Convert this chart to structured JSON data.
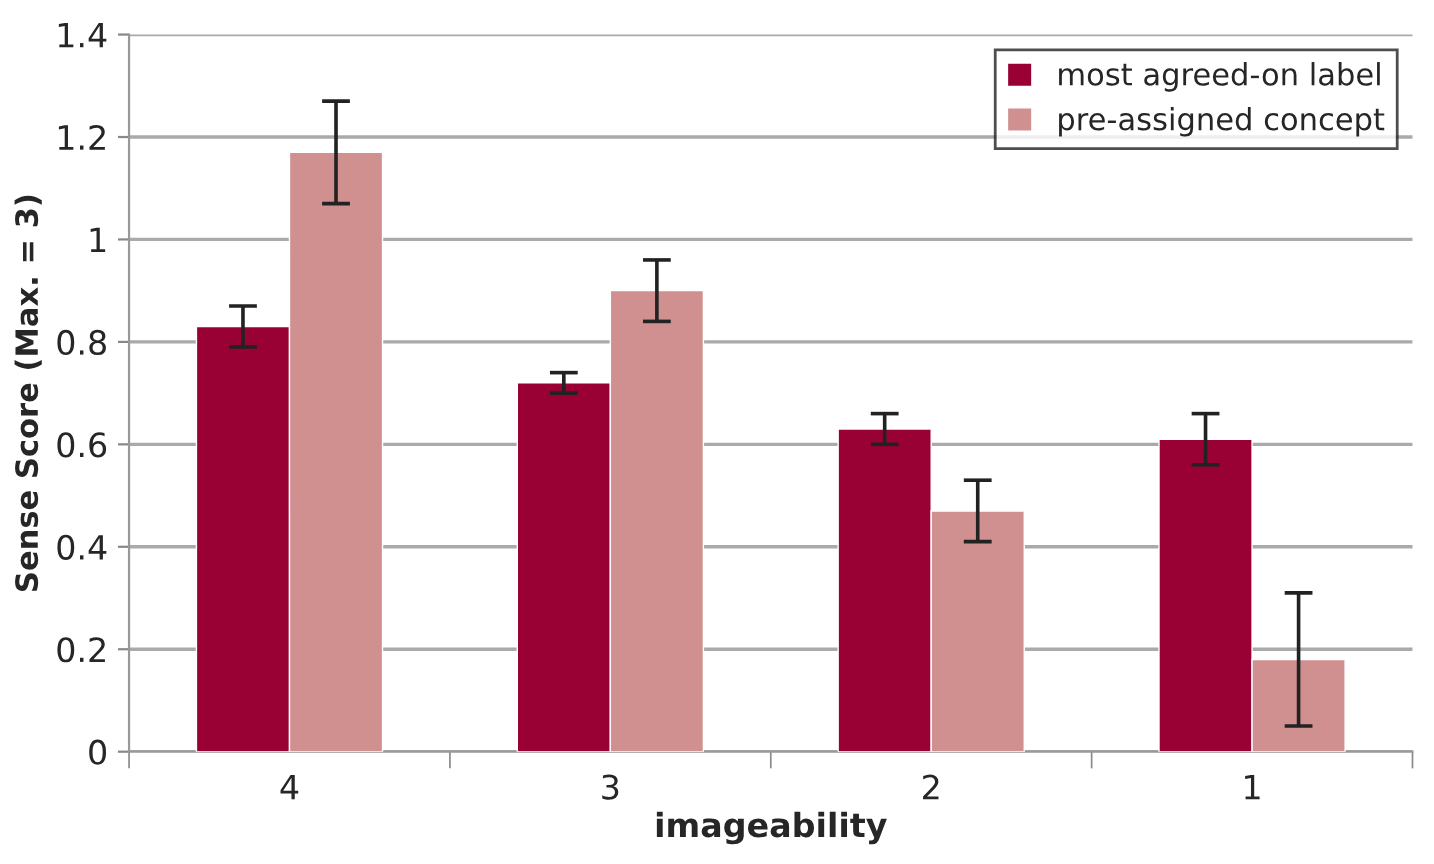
{
  "chart_data": {
    "type": "bar",
    "xlabel": "imageability",
    "ylabel": "Sense Score (Max. = 3)",
    "categories": [
      "4",
      "3",
      "2",
      "1"
    ],
    "series": [
      {
        "name": "most agreed-on label",
        "color": "#990033",
        "values": [
          0.83,
          0.72,
          0.63,
          0.61
        ],
        "errors": [
          0.04,
          0.02,
          0.03,
          0.05
        ]
      },
      {
        "name": "pre-assigned concept",
        "color": "#d09090",
        "values": [
          1.17,
          0.9,
          0.47,
          0.18
        ],
        "errors": [
          0.1,
          0.06,
          0.06,
          0.13
        ]
      }
    ],
    "ylim": [
      0,
      1.4
    ],
    "yticks": [
      0,
      0.2,
      0.4,
      0.6,
      0.8,
      1,
      1.2,
      1.4
    ],
    "grid": "y",
    "legend": "top right"
  }
}
